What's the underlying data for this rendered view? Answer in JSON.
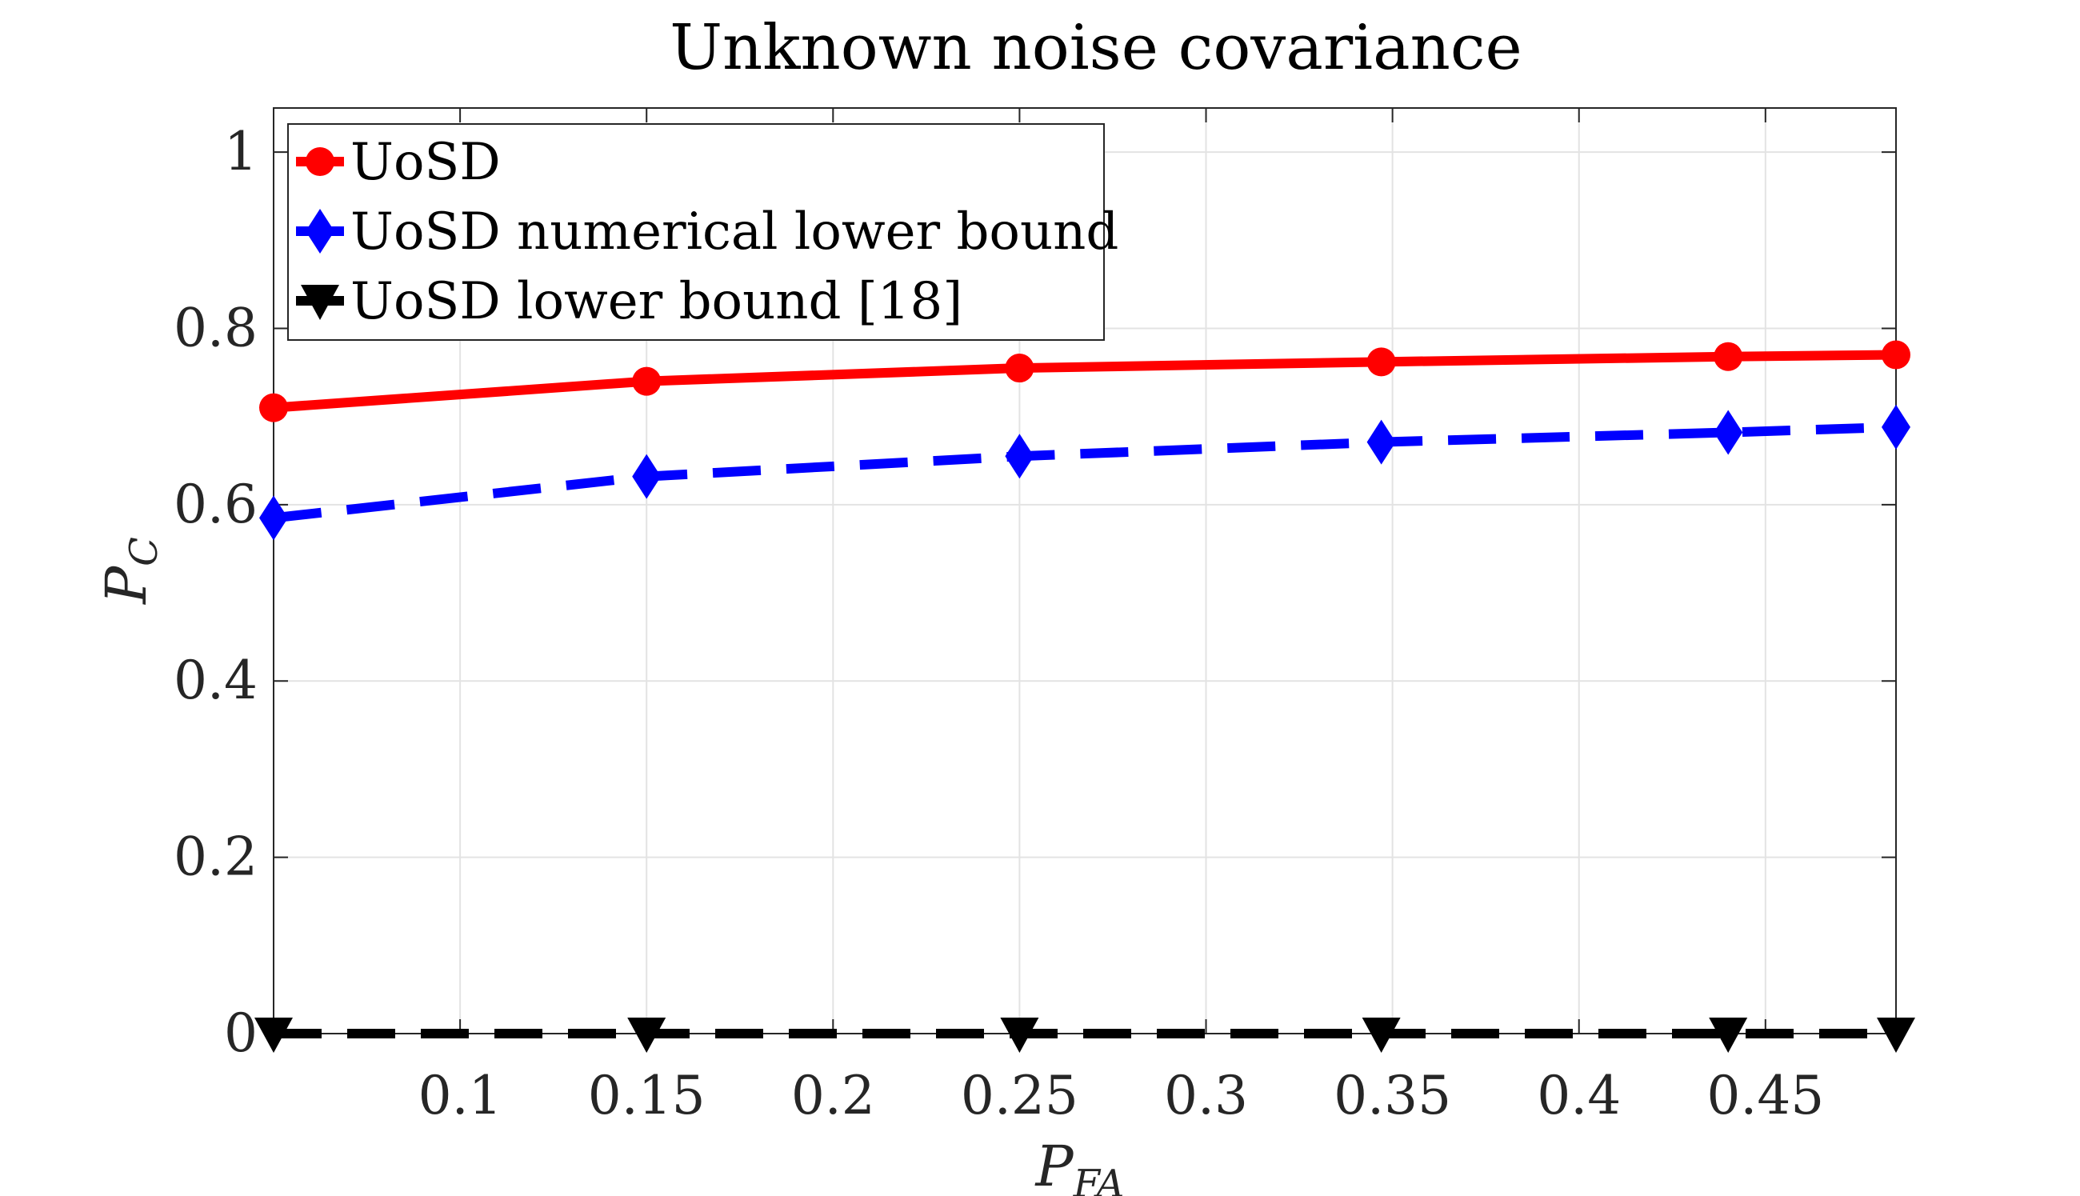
{
  "chart_data": {
    "type": "line",
    "title": "Unknown noise covariance",
    "xlabel": {
      "main": "P",
      "sub": "FA"
    },
    "ylabel": {
      "main": "P",
      "sub": "C"
    },
    "xlim": [
      0.05,
      0.485
    ],
    "ylim": [
      0,
      1.05
    ],
    "xticks": [
      0.1,
      0.15,
      0.2,
      0.25,
      0.3,
      0.35,
      0.4,
      0.45
    ],
    "xtick_labels": [
      "0.1",
      "0.15",
      "0.2",
      "0.25",
      "0.3",
      "0.35",
      "0.4",
      "0.45"
    ],
    "yticks": [
      0,
      0.2,
      0.4,
      0.6,
      0.8,
      1
    ],
    "ytick_labels": [
      "0",
      "0.2",
      "0.4",
      "0.6",
      "0.8",
      "1"
    ],
    "grid": true,
    "legend_position": "top-left",
    "x": [
      0.05,
      0.15,
      0.25,
      0.347,
      0.44,
      0.485
    ],
    "series": [
      {
        "name": "UoSD",
        "values": [
          0.71,
          0.74,
          0.755,
          0.762,
          0.768,
          0.77
        ],
        "color": "#ff0000",
        "style": "solid",
        "marker": "circle"
      },
      {
        "name": "UoSD numerical lower bound",
        "values": [
          0.585,
          0.632,
          0.655,
          0.671,
          0.682,
          0.688
        ],
        "color": "#0000ff",
        "style": "dashed",
        "marker": "diamond"
      },
      {
        "name": "UoSD lower bound [18]",
        "values": [
          0.0,
          0.0,
          0.0,
          0.0,
          0.0,
          0.0
        ],
        "color": "#000000",
        "style": "dashed",
        "marker": "triangle-down"
      }
    ]
  }
}
